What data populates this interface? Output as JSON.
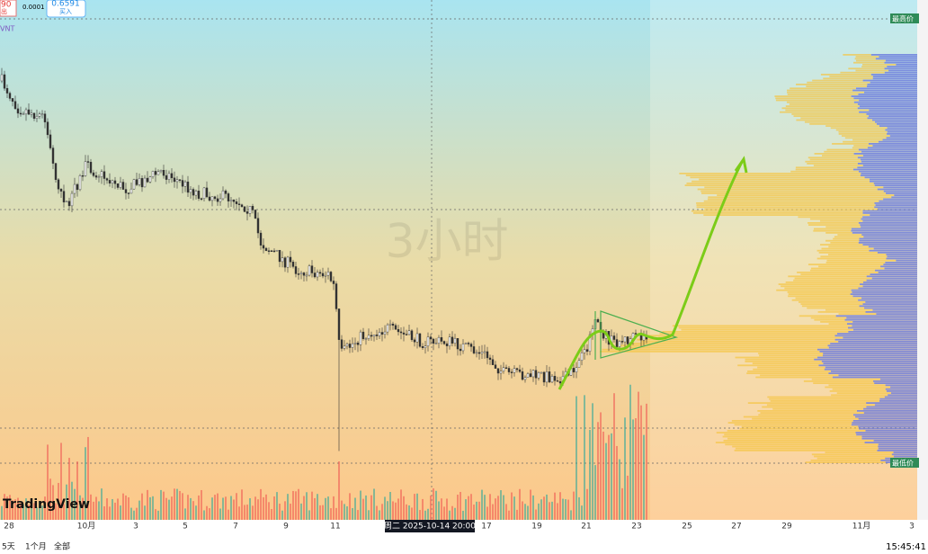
{
  "header": {
    "sell_price_partial": "90",
    "sell_label_partial": "出",
    "spread": "0.0001",
    "buy_price": "0.6591",
    "buy_label": "买入",
    "symbol_partial": "VNT"
  },
  "chart": {
    "watermark": "3小时",
    "x_labels": [
      "28",
      "10月",
      "3",
      "5",
      "7",
      "9",
      "11",
      "17",
      "19",
      "21",
      "23",
      "25",
      "27",
      "29",
      "11月",
      "3"
    ],
    "crosshair_label": "周二 2025-10-14  20:00",
    "high_label": "最高价",
    "low_label": "最低价",
    "logo": "TradingView"
  },
  "footer": {
    "ranges": [
      "5天",
      "1个月",
      "全部"
    ],
    "clock": "15:45:41"
  }
}
